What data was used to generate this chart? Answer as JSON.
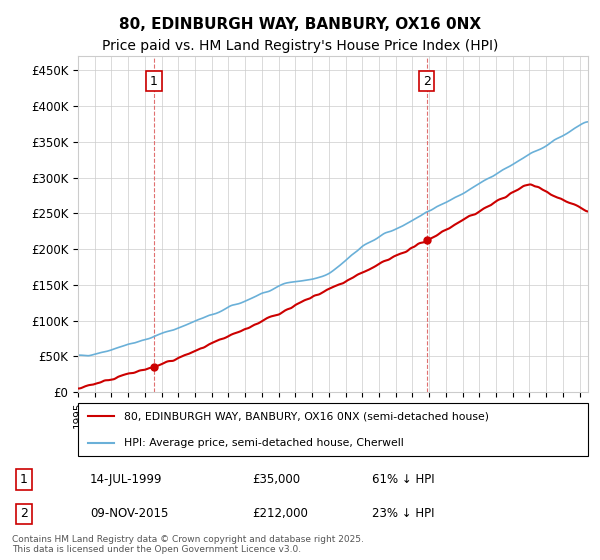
{
  "title": "80, EDINBURGH WAY, BANBURY, OX16 0NX",
  "subtitle": "Price paid vs. HM Land Registry's House Price Index (HPI)",
  "ylabel_ticks": [
    "£0",
    "£50K",
    "£100K",
    "£150K",
    "£200K",
    "£250K",
    "£300K",
    "£350K",
    "£400K",
    "£450K"
  ],
  "ytick_values": [
    0,
    50000,
    100000,
    150000,
    200000,
    250000,
    300000,
    350000,
    400000,
    450000
  ],
  "ylim": [
    0,
    470000
  ],
  "xlim_start": 1995.0,
  "xlim_end": 2025.5,
  "hpi_color": "#6ab0d8",
  "price_color": "#cc0000",
  "dashed_color": "#e06060",
  "background_color": "#ffffff",
  "grid_color": "#cccccc",
  "sale1_date": 1999.54,
  "sale1_price": 35000,
  "sale2_date": 2015.86,
  "sale2_price": 212000,
  "legend_label1": "80, EDINBURGH WAY, BANBURY, OX16 0NX (semi-detached house)",
  "legend_label2": "HPI: Average price, semi-detached house, Cherwell",
  "annotation1_label": "1",
  "annotation2_label": "2",
  "table_row1": [
    "1",
    "14-JUL-1999",
    "£35,000",
    "61% ↓ HPI"
  ],
  "table_row2": [
    "2",
    "09-NOV-2015",
    "£212,000",
    "23% ↓ HPI"
  ],
  "footnote": "Contains HM Land Registry data © Crown copyright and database right 2025.\nThis data is licensed under the Open Government Licence v3.0.",
  "title_fontsize": 11,
  "subtitle_fontsize": 10
}
